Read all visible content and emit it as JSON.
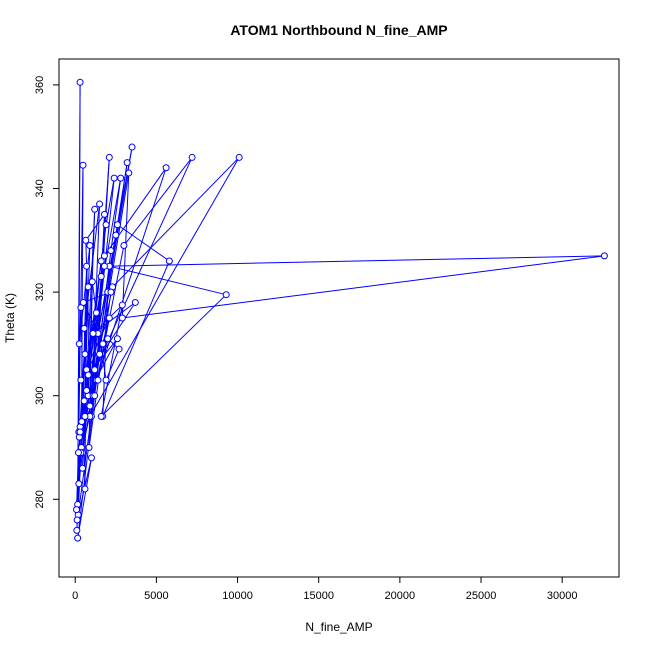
{
  "chart_data": {
    "type": "scatter",
    "title": "ATOM1 Northbound N_fine_AMP",
    "xlabel": "N_fine_AMP",
    "ylabel": "Theta (K)",
    "xlim": [
      -1000,
      33500
    ],
    "ylim": [
      265,
      365
    ],
    "xticks": [
      0,
      5000,
      10000,
      15000,
      20000,
      25000,
      30000
    ],
    "yticks": [
      280,
      300,
      320,
      340,
      360
    ],
    "grid": false,
    "legend": "none",
    "colors": {
      "series": "#0000ff",
      "frame": "#000000"
    },
    "series": [
      {
        "style": "points-and-lines",
        "x": [
          150,
          300,
          220,
          480,
          380,
          700,
          600,
          350,
          250,
          900,
          450,
          1200,
          800,
          550,
          1500,
          1000,
          650,
          1800,
          1300,
          2100,
          1600,
          900,
          2400,
          1900,
          700,
          2800,
          2200,
          1100,
          3200,
          2500,
          1400,
          3500,
          2000,
          1700,
          5800,
          2600,
          1200,
          7200,
          3000,
          900,
          10100,
          2300,
          600,
          5600,
          1800,
          450,
          3300,
          2900,
          32600,
          2100,
          9300,
          1600,
          2900,
          1100,
          3700,
          800,
          2600,
          550,
          1600,
          350,
          1200,
          250,
          800,
          180,
          1500,
          150,
          1000,
          120,
          600,
          100,
          300,
          80,
          200,
          400,
          700,
          1400,
          2000,
          2700,
          1900,
          1300,
          1050,
          850,
          2200,
          500,
          1700,
          350,
          2100,
          300,
          1800,
          220
        ],
        "y": [
          279,
          360.5,
          293,
          344.5,
          290,
          325,
          282,
          317,
          310,
          329,
          286,
          336,
          300,
          313,
          337,
          296,
          330,
          335,
          303,
          346,
          323,
          298,
          342,
          333,
          305,
          342,
          328,
          300,
          345,
          331,
          312,
          348,
          320,
          296,
          326,
          333,
          305,
          346,
          329,
          296,
          346,
          321,
          296,
          344,
          327,
          289,
          343,
          315,
          327,
          325,
          319.5,
          296,
          317.5,
          312,
          318,
          304,
          311,
          299,
          326,
          289,
          300,
          292,
          321,
          277,
          308,
          272.5,
          288,
          276,
          308,
          274,
          294,
          278,
          289,
          295,
          301,
          303,
          311,
          309,
          303,
          316,
          322,
          290,
          320,
          318,
          310,
          303,
          315,
          293,
          325,
          283
        ]
      }
    ]
  }
}
